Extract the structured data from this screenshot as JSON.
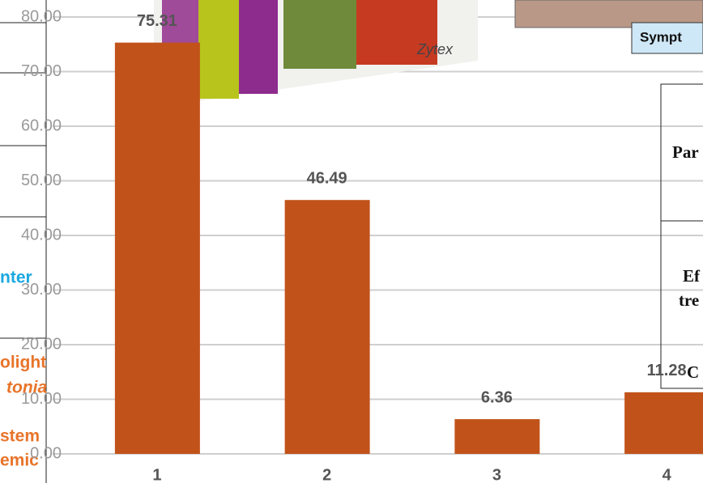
{
  "chart_data": {
    "type": "bar",
    "categories": [
      "1",
      "2",
      "3",
      "4"
    ],
    "values": [
      75.31,
      46.49,
      6.36,
      11.28
    ],
    "color": "#c1531a",
    "ylim": [
      0,
      80
    ],
    "yticks": [
      {
        "value": 0,
        "label": "0.00"
      },
      {
        "value": 10,
        "label": "10.00"
      },
      {
        "value": 20,
        "label": "20.00"
      },
      {
        "value": 30,
        "label": "30.00"
      },
      {
        "value": 40,
        "label": "40.00"
      },
      {
        "value": 50,
        "label": "50.00"
      },
      {
        "value": 60,
        "label": "60.00"
      },
      {
        "value": 70,
        "label": "70.00"
      },
      {
        "value": 80,
        "label": "80.00"
      }
    ],
    "grid": true
  },
  "overlay": {
    "brand": "Zytex",
    "symptom_header": "Sympt",
    "table_cells": [
      "Par",
      "Ef",
      "tre",
      "C"
    ],
    "left_texts": [
      "nter",
      "olight",
      "tonia",
      "stem",
      "emic"
    ]
  }
}
